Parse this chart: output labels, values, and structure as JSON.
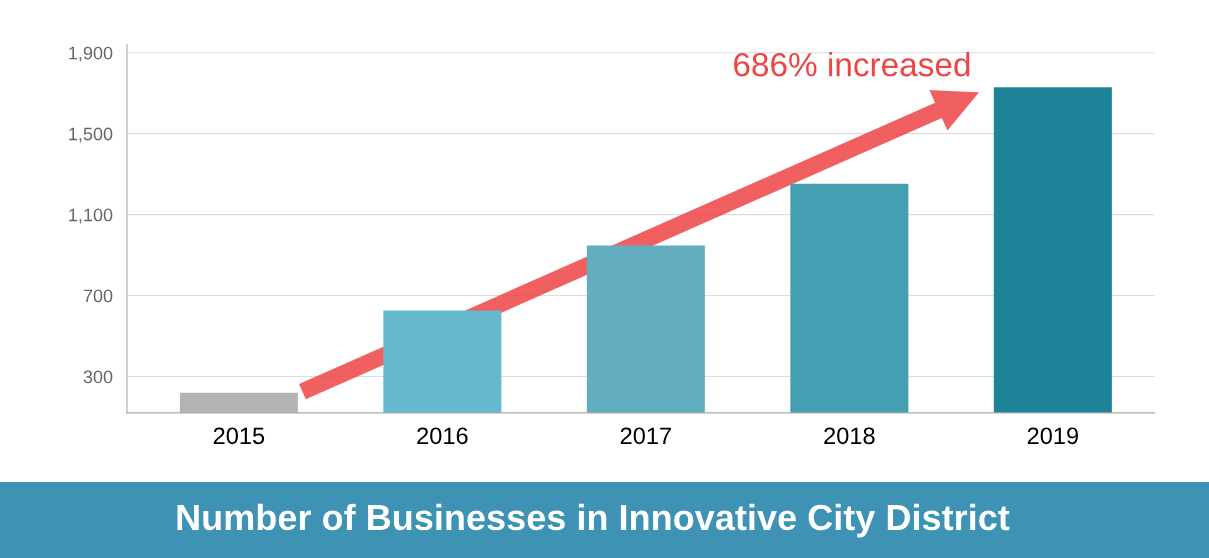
{
  "chart_data": {
    "type": "bar",
    "title": "Number of Businesses in Innovative City District",
    "categories": [
      "2015",
      "2016",
      "2017",
      "2018",
      "2019"
    ],
    "values": [
      220,
      626,
      947,
      1253,
      1730
    ],
    "colors": [
      "#b3b3b3",
      "#66b8cc",
      "#62adbf",
      "#459fb3",
      "#1d8398"
    ],
    "ylim": [
      120,
      1940
    ],
    "yticks": [
      {
        "value": 300,
        "label": "300"
      },
      {
        "value": 700,
        "label": "700"
      },
      {
        "value": 1100,
        "label": "1,100"
      },
      {
        "value": 1500,
        "label": "1,500"
      },
      {
        "value": 1900,
        "label": "1,900"
      }
    ],
    "grid": "y",
    "annotations": [
      {
        "text": "686% increased",
        "x": "2019",
        "y": 1730
      }
    ]
  }
}
